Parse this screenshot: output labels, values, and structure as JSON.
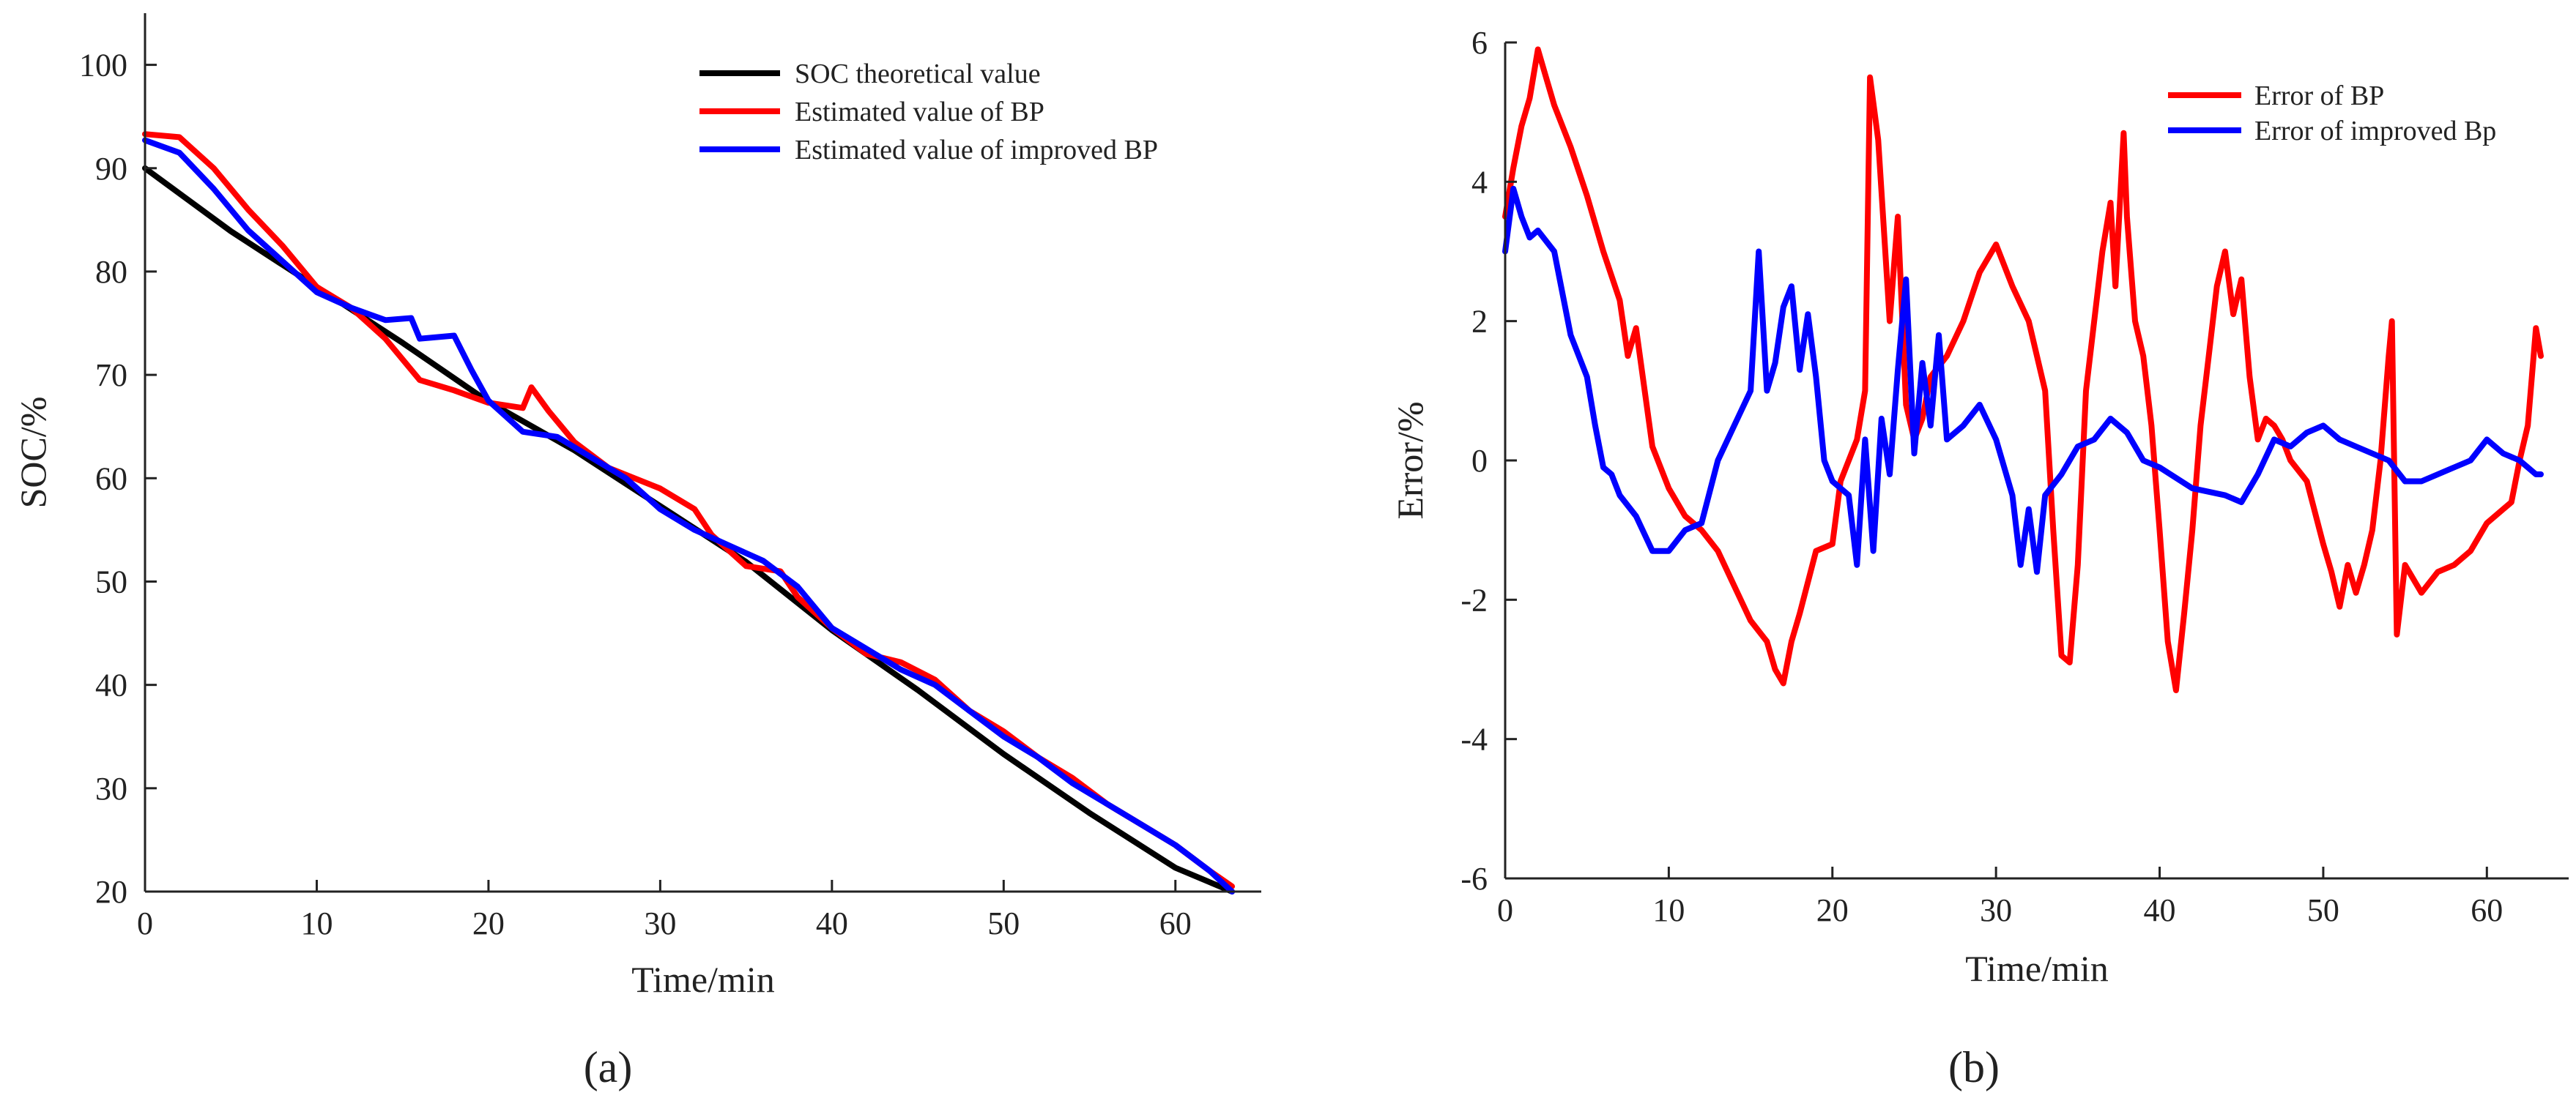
{
  "figure": {
    "panel_a_label": "(a)",
    "panel_b_label": "(b)"
  },
  "chart_data": [
    {
      "type": "line",
      "panel": "a",
      "title": "",
      "xlabel": "Time/min",
      "ylabel": "SOC/%",
      "xlim": [
        0,
        65
      ],
      "ylim": [
        20,
        105
      ],
      "xticks": [
        0,
        10,
        20,
        30,
        40,
        50,
        60
      ],
      "yticks": [
        20,
        30,
        40,
        50,
        60,
        70,
        80,
        90,
        100
      ],
      "legend": "top-right",
      "grid": false,
      "series": [
        {
          "name": "SOC theoretical value",
          "color": "#000000",
          "x": [
            0,
            5,
            10,
            15,
            20,
            25,
            30,
            35,
            40,
            45,
            50,
            55,
            60,
            63.3
          ],
          "y": [
            90,
            83.9,
            78.5,
            73.1,
            67.4,
            62.7,
            57.3,
            51.9,
            45.3,
            39.5,
            33.3,
            27.6,
            22.3,
            20
          ]
        },
        {
          "name": "Estimated value of BP",
          "color": "#ff0000",
          "x": [
            0,
            2,
            4,
            6,
            8,
            10,
            12,
            14,
            16,
            18,
            20,
            22,
            22.5,
            23.5,
            25,
            27,
            30,
            32,
            33,
            35,
            37,
            38,
            40,
            42,
            44,
            46,
            48,
            50,
            52,
            54,
            56,
            58,
            60,
            62,
            63.3
          ],
          "y": [
            93.3,
            93,
            90,
            86,
            82.5,
            78.5,
            76.5,
            73.5,
            69.5,
            68.5,
            67.3,
            66.8,
            68.8,
            66.5,
            63.5,
            61,
            59,
            57,
            54.5,
            51.5,
            51,
            48.5,
            45.5,
            43,
            42.2,
            40.5,
            37.5,
            35.5,
            33,
            31,
            28.5,
            26.5,
            24.5,
            22,
            20.5
          ]
        },
        {
          "name": "Estimated value of improved BP",
          "color": "#0000ff",
          "x": [
            0,
            2,
            4,
            6,
            8,
            10,
            12,
            14,
            15.5,
            16,
            18,
            19,
            20,
            22,
            24,
            26,
            28,
            30,
            32,
            34,
            36,
            38,
            40,
            42,
            44,
            46,
            48,
            50,
            52,
            54,
            56,
            58,
            60,
            62,
            63.3
          ],
          "y": [
            92.7,
            91.5,
            88,
            84,
            81,
            78,
            76.5,
            75.3,
            75.5,
            73.5,
            73.8,
            70.5,
            67.5,
            64.5,
            64,
            62,
            60,
            57,
            55,
            53.5,
            52,
            49.5,
            45.5,
            43.5,
            41.5,
            40,
            37.5,
            35,
            33,
            30.5,
            28.5,
            26.5,
            24.5,
            22,
            20
          ]
        }
      ]
    },
    {
      "type": "line",
      "panel": "b",
      "title": "",
      "xlabel": "Time/min",
      "ylabel": "Error/%",
      "xlim": [
        0,
        65
      ],
      "ylim": [
        -6,
        6
      ],
      "xticks": [
        0,
        10,
        20,
        30,
        40,
        50,
        60
      ],
      "yticks": [
        -6,
        -4,
        -2,
        0,
        2,
        4,
        6
      ],
      "legend": "top-right",
      "grid": false,
      "series": [
        {
          "name": "Error of BP",
          "color": "#ff0000",
          "x": [
            0,
            0.5,
            1,
            1.5,
            2,
            2.5,
            3,
            4,
            5,
            6,
            7,
            7.5,
            8,
            9,
            10,
            11,
            12,
            13,
            14,
            15,
            16,
            16.5,
            17,
            17.5,
            18,
            19,
            20,
            20.5,
            21,
            21.5,
            22,
            22.3,
            22.8,
            23.5,
            24,
            24.5,
            25,
            25.5,
            26,
            27,
            28,
            29,
            30,
            31,
            32,
            33,
            33.5,
            34,
            34.5,
            35,
            35.5,
            36,
            36.5,
            37,
            37.3,
            37.8,
            38,
            38.5,
            39,
            39.5,
            40,
            40.5,
            41,
            41.5,
            42,
            42.5,
            43,
            43.5,
            44,
            44.5,
            45,
            45.5,
            46,
            46.5,
            47,
            47.5,
            48,
            49,
            50,
            50.5,
            51,
            51.5,
            52,
            52.5,
            53,
            53.5,
            54,
            54.2,
            54.5,
            55,
            55.5,
            56,
            57,
            58,
            59,
            60,
            61,
            61.5,
            62,
            62.5,
            63,
            63.3
          ],
          "y": [
            3.5,
            4.2,
            4.8,
            5.2,
            5.9,
            5.5,
            5.1,
            4.5,
            3.8,
            3,
            2.3,
            1.5,
            1.9,
            0.2,
            -0.4,
            -0.8,
            -1,
            -1.3,
            -1.8,
            -2.3,
            -2.6,
            -3,
            -3.2,
            -2.6,
            -2.2,
            -1.3,
            -1.2,
            -0.3,
            0,
            0.3,
            1,
            5.5,
            4.6,
            2,
            3.5,
            0.8,
            0.3,
            0.6,
            1.2,
            1.5,
            2,
            2.7,
            3.1,
            2.5,
            2,
            1,
            -1,
            -2.8,
            -2.9,
            -1.5,
            1,
            2,
            3,
            3.7,
            2.5,
            4.7,
            3.5,
            2,
            1.5,
            0.5,
            -1,
            -2.6,
            -3.3,
            -2.2,
            -1,
            0.5,
            1.5,
            2.5,
            3,
            2.1,
            2.6,
            1.2,
            0.3,
            0.6,
            0.5,
            0.3,
            0,
            -0.3,
            -1.2,
            -1.6,
            -2.1,
            -1.5,
            -1.9,
            -1.5,
            -1,
            0,
            1.5,
            2,
            -2.5,
            -1.5,
            -1.7,
            -1.9,
            -1.6,
            -1.5,
            -1.3,
            -0.9,
            -0.7,
            -0.6,
            0,
            0.5,
            1.9,
            1.5
          ]
        },
        {
          "name": "Error of improved Bp",
          "color": "#0000ff",
          "x": [
            0,
            0.5,
            1,
            1.5,
            2,
            3,
            4,
            5,
            5.5,
            6,
            6.5,
            7,
            8,
            9,
            10,
            11,
            12,
            13,
            14,
            15,
            15.5,
            16,
            16.5,
            17,
            17.5,
            18,
            18.5,
            19,
            19.5,
            20,
            21,
            21.5,
            22,
            22.5,
            23,
            23.5,
            24,
            24.5,
            25,
            25.5,
            26,
            26.5,
            27,
            28,
            29,
            30,
            31,
            31.5,
            32,
            32.5,
            33,
            34,
            35,
            36,
            37,
            38,
            39,
            40,
            42,
            44,
            45,
            46,
            47,
            48,
            49,
            50,
            51,
            52,
            53,
            54,
            55,
            56,
            57,
            58,
            59,
            60,
            61,
            62,
            63,
            63.3
          ],
          "y": [
            3,
            3.9,
            3.5,
            3.2,
            3.3,
            3,
            1.8,
            1.2,
            0.5,
            -0.1,
            -0.2,
            -0.5,
            -0.8,
            -1.3,
            -1.3,
            -1,
            -0.9,
            0,
            0.5,
            1,
            3,
            1,
            1.4,
            2.2,
            2.5,
            1.3,
            2.1,
            1.2,
            0,
            -0.3,
            -0.5,
            -1.5,
            0.3,
            -1.3,
            0.6,
            -0.2,
            1.3,
            2.6,
            0.1,
            1.4,
            0.5,
            1.8,
            0.3,
            0.5,
            0.8,
            0.3,
            -0.5,
            -1.5,
            -0.7,
            -1.6,
            -0.5,
            -0.2,
            0.2,
            0.3,
            0.6,
            0.4,
            0,
            -0.1,
            -0.4,
            -0.5,
            -0.6,
            -0.2,
            0.3,
            0.2,
            0.4,
            0.5,
            0.3,
            0.2,
            0.1,
            0,
            -0.3,
            -0.3,
            -0.2,
            -0.1,
            0,
            0.3,
            0.1,
            0,
            -0.2,
            -0.2
          ]
        }
      ]
    }
  ]
}
